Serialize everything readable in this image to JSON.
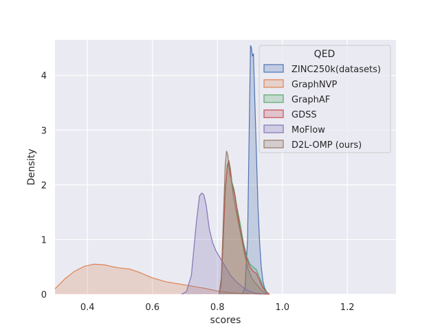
{
  "chart_data": {
    "type": "area",
    "title": "",
    "xlabel": "scores",
    "ylabel": "Density",
    "xlim": [
      0.3,
      1.35
    ],
    "ylim": [
      0,
      4.65
    ],
    "grid": true,
    "xticks": [
      0.4,
      0.6,
      0.8,
      1.0,
      1.2
    ],
    "xtick_labels": [
      "0.4",
      "0.6",
      "0.8",
      "1.0",
      "1.2"
    ],
    "yticks": [
      0,
      1,
      2,
      3,
      4
    ],
    "ytick_labels": [
      "0",
      "1",
      "2",
      "3",
      "4"
    ],
    "legend": {
      "title": "QED",
      "placement": "top-right"
    },
    "series": [
      {
        "name": "ZINC250k(datasets)",
        "color": "#4c72b0",
        "points": [
          [
            0.875,
            0.0
          ],
          [
            0.885,
            0.1
          ],
          [
            0.893,
            1.0
          ],
          [
            0.898,
            3.0
          ],
          [
            0.902,
            4.55
          ],
          [
            0.905,
            4.5
          ],
          [
            0.908,
            4.35
          ],
          [
            0.911,
            4.4
          ],
          [
            0.915,
            3.6
          ],
          [
            0.92,
            2.6
          ],
          [
            0.925,
            1.6
          ],
          [
            0.93,
            0.95
          ],
          [
            0.935,
            0.5
          ],
          [
            0.94,
            0.25
          ],
          [
            0.945,
            0.12
          ],
          [
            0.952,
            0.04
          ],
          [
            0.96,
            0.0
          ]
        ]
      },
      {
        "name": "GraphNVP",
        "color": "#dd8452",
        "points": [
          [
            0.3,
            0.1
          ],
          [
            0.33,
            0.28
          ],
          [
            0.36,
            0.42
          ],
          [
            0.39,
            0.51
          ],
          [
            0.42,
            0.55
          ],
          [
            0.45,
            0.54
          ],
          [
            0.48,
            0.5
          ],
          [
            0.5,
            0.48
          ],
          [
            0.53,
            0.46
          ],
          [
            0.56,
            0.4
          ],
          [
            0.6,
            0.3
          ],
          [
            0.64,
            0.23
          ],
          [
            0.68,
            0.19
          ],
          [
            0.72,
            0.15
          ],
          [
            0.76,
            0.11
          ],
          [
            0.8,
            0.06
          ],
          [
            0.84,
            0.03
          ],
          [
            0.88,
            0.015
          ],
          [
            0.92,
            0.005
          ],
          [
            0.96,
            0.0
          ]
        ]
      },
      {
        "name": "GraphAF",
        "color": "#55a868",
        "points": [
          [
            0.805,
            0.0
          ],
          [
            0.812,
            0.2
          ],
          [
            0.818,
            1.0
          ],
          [
            0.824,
            1.9
          ],
          [
            0.83,
            2.35
          ],
          [
            0.835,
            2.45
          ],
          [
            0.84,
            2.3
          ],
          [
            0.845,
            2.05
          ],
          [
            0.85,
            1.95
          ],
          [
            0.855,
            1.8
          ],
          [
            0.86,
            1.6
          ],
          [
            0.87,
            1.3
          ],
          [
            0.88,
            0.95
          ],
          [
            0.89,
            0.7
          ],
          [
            0.9,
            0.55
          ],
          [
            0.91,
            0.5
          ],
          [
            0.92,
            0.45
          ],
          [
            0.93,
            0.3
          ],
          [
            0.94,
            0.15
          ],
          [
            0.95,
            0.05
          ],
          [
            0.96,
            0.0
          ]
        ]
      },
      {
        "name": "GDSS",
        "color": "#c44e52",
        "points": [
          [
            0.805,
            0.0
          ],
          [
            0.812,
            0.2
          ],
          [
            0.818,
            1.0
          ],
          [
            0.824,
            1.85
          ],
          [
            0.83,
            2.3
          ],
          [
            0.835,
            2.45
          ],
          [
            0.84,
            2.25
          ],
          [
            0.845,
            2.0
          ],
          [
            0.85,
            1.9
          ],
          [
            0.855,
            1.75
          ],
          [
            0.86,
            1.55
          ],
          [
            0.87,
            1.2
          ],
          [
            0.88,
            0.9
          ],
          [
            0.89,
            0.65
          ],
          [
            0.9,
            0.5
          ],
          [
            0.91,
            0.42
          ],
          [
            0.92,
            0.38
          ],
          [
            0.93,
            0.25
          ],
          [
            0.94,
            0.12
          ],
          [
            0.95,
            0.04
          ],
          [
            0.96,
            0.0
          ]
        ]
      },
      {
        "name": "MoFlow",
        "color": "#8172b3",
        "points": [
          [
            0.69,
            0.0
          ],
          [
            0.705,
            0.05
          ],
          [
            0.72,
            0.35
          ],
          [
            0.735,
            1.3
          ],
          [
            0.745,
            1.8
          ],
          [
            0.752,
            1.85
          ],
          [
            0.758,
            1.82
          ],
          [
            0.765,
            1.65
          ],
          [
            0.775,
            1.2
          ],
          [
            0.785,
            0.95
          ],
          [
            0.795,
            0.8
          ],
          [
            0.81,
            0.65
          ],
          [
            0.82,
            0.55
          ],
          [
            0.84,
            0.35
          ],
          [
            0.86,
            0.22
          ],
          [
            0.88,
            0.12
          ],
          [
            0.9,
            0.05
          ],
          [
            0.92,
            0.02
          ],
          [
            0.95,
            0.0
          ]
        ]
      },
      {
        "name": "D2L-OMP (ours)",
        "color": "#937860",
        "points": [
          [
            0.805,
            0.0
          ],
          [
            0.812,
            0.3
          ],
          [
            0.818,
            1.3
          ],
          [
            0.824,
            2.35
          ],
          [
            0.828,
            2.62
          ],
          [
            0.832,
            2.55
          ],
          [
            0.838,
            2.2
          ],
          [
            0.843,
            2.1
          ],
          [
            0.848,
            1.85
          ],
          [
            0.855,
            1.6
          ],
          [
            0.865,
            1.3
          ],
          [
            0.875,
            1.0
          ],
          [
            0.885,
            0.7
          ],
          [
            0.895,
            0.45
          ],
          [
            0.905,
            0.3
          ],
          [
            0.915,
            0.22
          ],
          [
            0.925,
            0.15
          ],
          [
            0.935,
            0.08
          ],
          [
            0.945,
            0.03
          ],
          [
            0.955,
            0.0
          ]
        ]
      }
    ]
  }
}
